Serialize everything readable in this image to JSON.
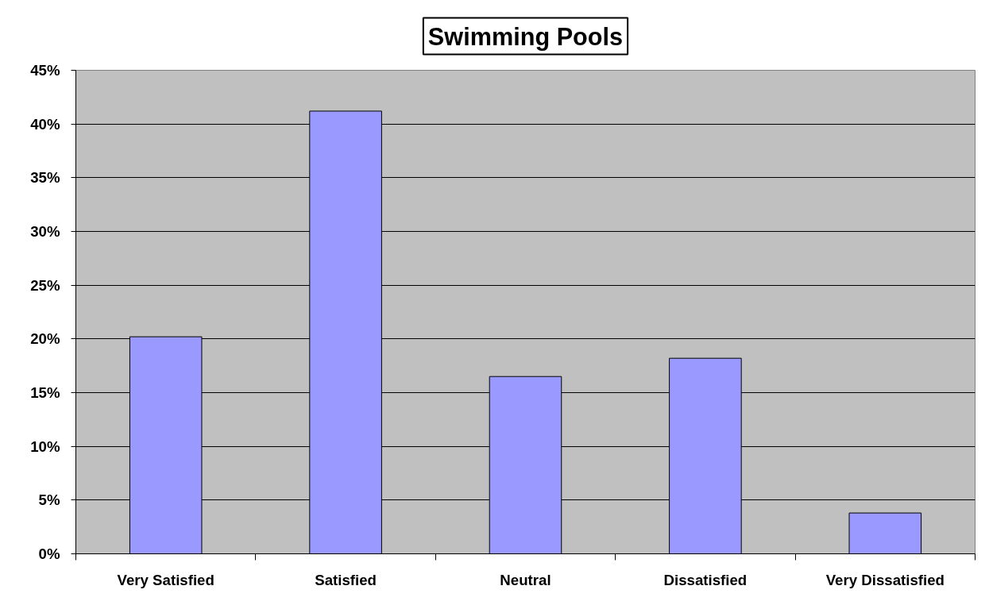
{
  "chart_data": {
    "type": "bar",
    "title": "Swimming Pools",
    "categories": [
      "Very Satisfied",
      "Satisfied",
      "Neutral",
      "Dissatisfied",
      "Very Dissatisfied"
    ],
    "values": [
      20.2,
      41.2,
      16.5,
      18.2,
      3.8
    ],
    "color": "#9999ff",
    "ylim": [
      0,
      45
    ],
    "yticks": [
      {
        "value": 0,
        "label": "0%"
      },
      {
        "value": 5,
        "label": "5%"
      },
      {
        "value": 10,
        "label": "10%"
      },
      {
        "value": 15,
        "label": "15%"
      },
      {
        "value": 20,
        "label": "20%"
      },
      {
        "value": 25,
        "label": "25%"
      },
      {
        "value": 30,
        "label": "30%"
      },
      {
        "value": 35,
        "label": "35%"
      },
      {
        "value": 40,
        "label": "40%"
      },
      {
        "value": 45,
        "label": "45%"
      }
    ],
    "grid": "y"
  }
}
